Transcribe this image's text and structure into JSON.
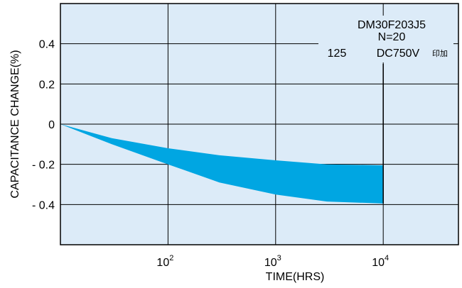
{
  "chart_data": {
    "type": "area",
    "xlabel": "TIME(HRS)",
    "ylabel": "CAPACITANCE CHANGE(%)",
    "x_scale": "log",
    "xlim": [
      10,
      50000
    ],
    "ylim": [
      -0.6,
      0.6
    ],
    "x_ticks": [
      {
        "value": 100,
        "base": "10",
        "exp": "2"
      },
      {
        "value": 1000,
        "base": "10",
        "exp": "3"
      },
      {
        "value": 10000,
        "base": "10",
        "exp": "4"
      }
    ],
    "y_ticks": [
      {
        "value": 0.4,
        "label": "0.4"
      },
      {
        "value": 0.2,
        "label": "0.2"
      },
      {
        "value": 0,
        "label": "0"
      },
      {
        "value": -0.2,
        "label": "- 0.2"
      },
      {
        "value": -0.4,
        "label": "- 0.4"
      }
    ],
    "grid": true,
    "band": {
      "x": [
        10,
        30,
        100,
        300,
        1000,
        3000,
        10000
      ],
      "upper": [
        0,
        -0.07,
        -0.12,
        -0.155,
        -0.18,
        -0.2,
        -0.205
      ],
      "lower": [
        0,
        -0.1,
        -0.2,
        -0.29,
        -0.35,
        -0.385,
        -0.395
      ]
    },
    "annotations": {
      "model": "DM30F203J5",
      "n": "N=20",
      "temp": "125",
      "voltage": "DC750V",
      "applied": "印加"
    },
    "colors": {
      "plot_bg": "#dcebf8",
      "band": "#00a6e2",
      "axis": "#000000"
    }
  }
}
